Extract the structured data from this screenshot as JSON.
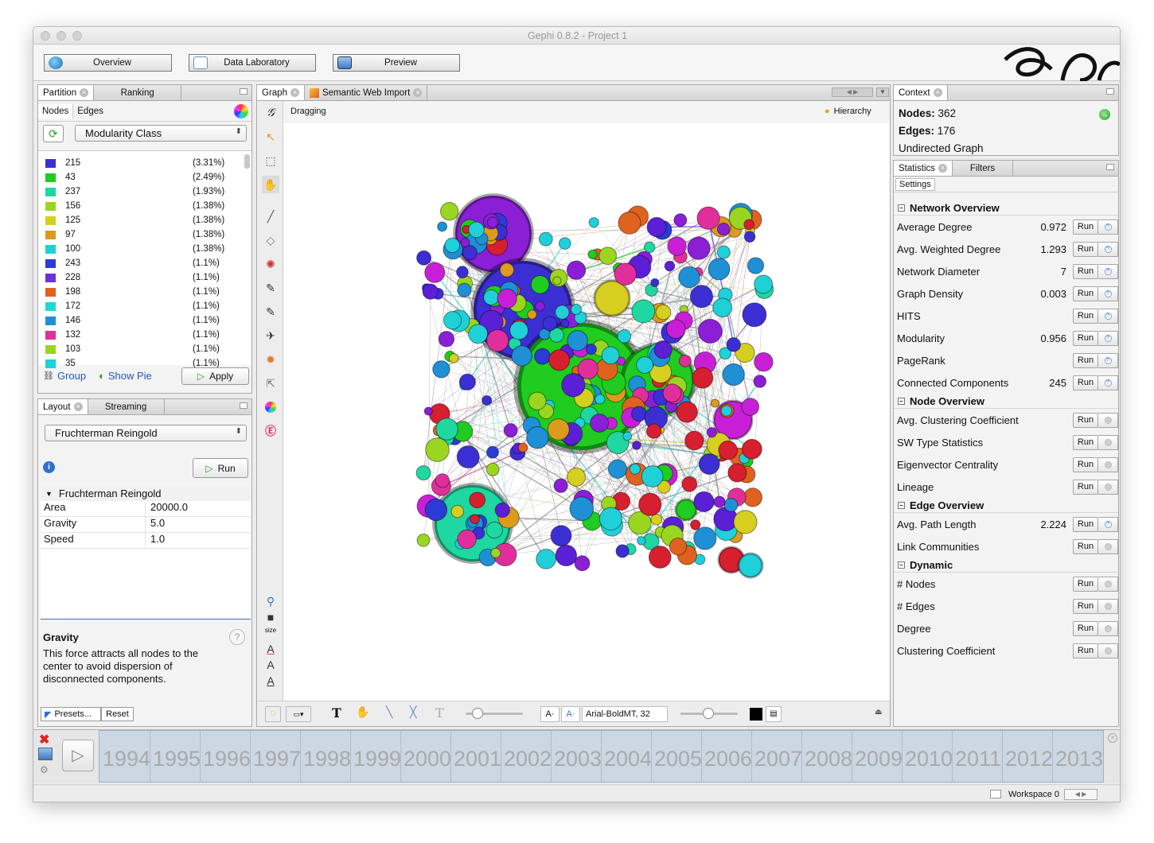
{
  "window": {
    "title": "Gephi 0.8.2 - Project 1"
  },
  "toolbar": {
    "overview": "Overview",
    "data_laboratory": "Data Laboratory",
    "preview": "Preview"
  },
  "partition": {
    "tabs": [
      "Partition",
      "Ranking"
    ],
    "subtabs": [
      "Nodes",
      "Edges"
    ],
    "selected": "Modularity Class",
    "rows": [
      {
        "name": "215",
        "pct": "(3.31%)",
        "color": "#3b2fd4"
      },
      {
        "name": "43",
        "pct": "(2.49%)",
        "color": "#1fcc1f"
      },
      {
        "name": "237",
        "pct": "(1.93%)",
        "color": "#1fd7a0"
      },
      {
        "name": "156",
        "pct": "(1.38%)",
        "color": "#9ad61f"
      },
      {
        "name": "125",
        "pct": "(1.38%)",
        "color": "#d6cf1f"
      },
      {
        "name": "97",
        "pct": "(1.38%)",
        "color": "#dc9a1f"
      },
      {
        "name": "100",
        "pct": "(1.38%)",
        "color": "#1fd1d6"
      },
      {
        "name": "243",
        "pct": "(1.1%)",
        "color": "#2c3bd6"
      },
      {
        "name": "228",
        "pct": "(1.1%)",
        "color": "#6a32d6"
      },
      {
        "name": "198",
        "pct": "(1.1%)",
        "color": "#e0621f"
      },
      {
        "name": "172",
        "pct": "(1.1%)",
        "color": "#1fd9d0"
      },
      {
        "name": "146",
        "pct": "(1.1%)",
        "color": "#1f8fd6"
      },
      {
        "name": "132",
        "pct": "(1.1%)",
        "color": "#e02f9a"
      },
      {
        "name": "103",
        "pct": "(1.1%)",
        "color": "#9ad61f"
      },
      {
        "name": "35",
        "pct": "(1.1%)",
        "color": "#1fd0d9"
      }
    ],
    "group": "Group",
    "show_pie": "Show Pie",
    "apply": "Apply"
  },
  "layout": {
    "tabs": [
      "Layout",
      "Streaming"
    ],
    "algorithm": "Fruchterman Reingold",
    "run": "Run",
    "section": "Fruchterman Reingold",
    "props": [
      {
        "k": "Area",
        "v": "20000.0"
      },
      {
        "k": "Gravity",
        "v": "5.0"
      },
      {
        "k": "Speed",
        "v": "1.0"
      }
    ],
    "help_title": "Gravity",
    "help_text": "This force attracts all nodes to the center to avoid dispersion of disconnected components.",
    "presets": "Presets...",
    "reset": "Reset"
  },
  "graph": {
    "tabs": [
      "Graph",
      "Semantic Web Import"
    ],
    "mode": "Dragging",
    "hierarchy": "Hierarchy",
    "font": "Arial-BoldMT, 32",
    "size_label": "size"
  },
  "context": {
    "tab": "Context",
    "nodes_label": "Nodes:",
    "nodes": "362",
    "edges_label": "Edges:",
    "edges": "176",
    "graph_type": "Undirected Graph"
  },
  "statistics": {
    "tabs": [
      "Statistics",
      "Filters"
    ],
    "settings": "Settings",
    "run": "Run",
    "sections": [
      {
        "title": "Network Overview",
        "rows": [
          {
            "name": "Average Degree",
            "value": "0.972",
            "help": true
          },
          {
            "name": "Avg. Weighted Degree",
            "value": "1.293",
            "help": true
          },
          {
            "name": "Network Diameter",
            "value": "7",
            "help": true
          },
          {
            "name": "Graph Density",
            "value": "0.003",
            "help": true
          },
          {
            "name": "HITS",
            "value": "",
            "help": true
          },
          {
            "name": "Modularity",
            "value": "0.956",
            "help": true
          },
          {
            "name": "PageRank",
            "value": "",
            "help": true
          },
          {
            "name": "Connected Components",
            "value": "245",
            "help": true
          }
        ]
      },
      {
        "title": "Node Overview",
        "rows": [
          {
            "name": "Avg. Clustering Coefficient",
            "value": "",
            "help": false
          },
          {
            "name": "SW Type Statistics",
            "value": "",
            "help": false
          },
          {
            "name": "Eigenvector Centrality",
            "value": "",
            "help": false
          },
          {
            "name": "Lineage",
            "value": "",
            "help": false
          }
        ]
      },
      {
        "title": "Edge Overview",
        "rows": [
          {
            "name": "Avg. Path Length",
            "value": "2.224",
            "help": true
          },
          {
            "name": "Link Communities",
            "value": "",
            "help": false
          }
        ]
      },
      {
        "title": "Dynamic",
        "rows": [
          {
            "name": "# Nodes",
            "value": "",
            "help": false
          },
          {
            "name": "# Edges",
            "value": "",
            "help": false
          },
          {
            "name": "Degree",
            "value": "",
            "help": false
          },
          {
            "name": "Clustering Coefficient",
            "value": "",
            "help": false
          }
        ]
      }
    ]
  },
  "timeline": {
    "years": [
      "1994",
      "1995",
      "1996",
      "1997",
      "1998",
      "1999",
      "2000",
      "2001",
      "2002",
      "2003",
      "2004",
      "2005",
      "2006",
      "2007",
      "2008",
      "2009",
      "2010",
      "2011",
      "2012",
      "2013"
    ]
  },
  "statusbar": {
    "workspace": "Workspace 0"
  },
  "palette": [
    "#3b2fd4",
    "#1fcc1f",
    "#1fd7a0",
    "#9ad61f",
    "#d6cf1f",
    "#dc9a1f",
    "#1fd1d6",
    "#2c3bd6",
    "#8a1fd6",
    "#e0621f",
    "#1f8fd6",
    "#e02f9a",
    "#c81fd6",
    "#d61f2f",
    "#1fd0d9",
    "#5b1fd6"
  ]
}
